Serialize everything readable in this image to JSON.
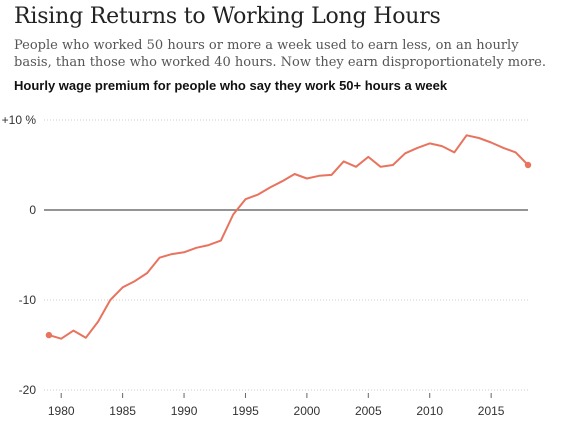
{
  "header": {
    "title": "Rising Returns to Working Long Hours",
    "subtitle": "People who worked 50 hours or more a week used to earn less, on an hourly basis, than those who worked 40 hours. Now they earn disproportionately more."
  },
  "chart_data": {
    "type": "line",
    "title": "Hourly wage premium for people who say they work 50+ hours a week",
    "xlabel": "",
    "ylabel": "",
    "xlim": [
      1978.6,
      2018
    ],
    "ylim": [
      -20,
      10
    ],
    "y_ticks": [
      {
        "value": 10,
        "label": "+10 %"
      },
      {
        "value": 0,
        "label": "0"
      },
      {
        "value": -10,
        "label": "-10"
      },
      {
        "value": -20,
        "label": "-20"
      }
    ],
    "x_ticks": [
      {
        "value": 1980,
        "label": "1980"
      },
      {
        "value": 1985,
        "label": "1985"
      },
      {
        "value": 1990,
        "label": "1990"
      },
      {
        "value": 1995,
        "label": "1995"
      },
      {
        "value": 2000,
        "label": "2000"
      },
      {
        "value": 2005,
        "label": "2005"
      },
      {
        "value": 2010,
        "label": "2010"
      },
      {
        "value": 2015,
        "label": "2015"
      }
    ],
    "line_color": "#e8735f",
    "zero_line_color": "#555555",
    "series": [
      {
        "x": [
          1979,
          1980,
          1981,
          1982,
          1983,
          1984,
          1985,
          1986,
          1987,
          1988,
          1989,
          1990,
          1991,
          1992,
          1993,
          1994,
          1995,
          1996,
          1997,
          1998,
          1999,
          2000,
          2001,
          2002,
          2003,
          2004,
          2005,
          2006,
          2007,
          2008,
          2009,
          2010,
          2011,
          2012,
          2013,
          2014,
          2015,
          2016,
          2017,
          2018
        ],
        "values": [
          -13.9,
          -14.3,
          -13.4,
          -14.2,
          -12.4,
          -10.0,
          -8.6,
          -7.9,
          -7.0,
          -5.3,
          -4.9,
          -4.7,
          -4.2,
          -3.9,
          -3.4,
          -0.5,
          1.2,
          1.7,
          2.5,
          3.2,
          4.0,
          3.5,
          3.8,
          3.9,
          5.4,
          4.8,
          5.9,
          4.8,
          5.0,
          6.3,
          6.9,
          7.4,
          7.1,
          6.4,
          8.3,
          8.0,
          7.5,
          6.9,
          6.4,
          5.0
        ]
      }
    ]
  }
}
